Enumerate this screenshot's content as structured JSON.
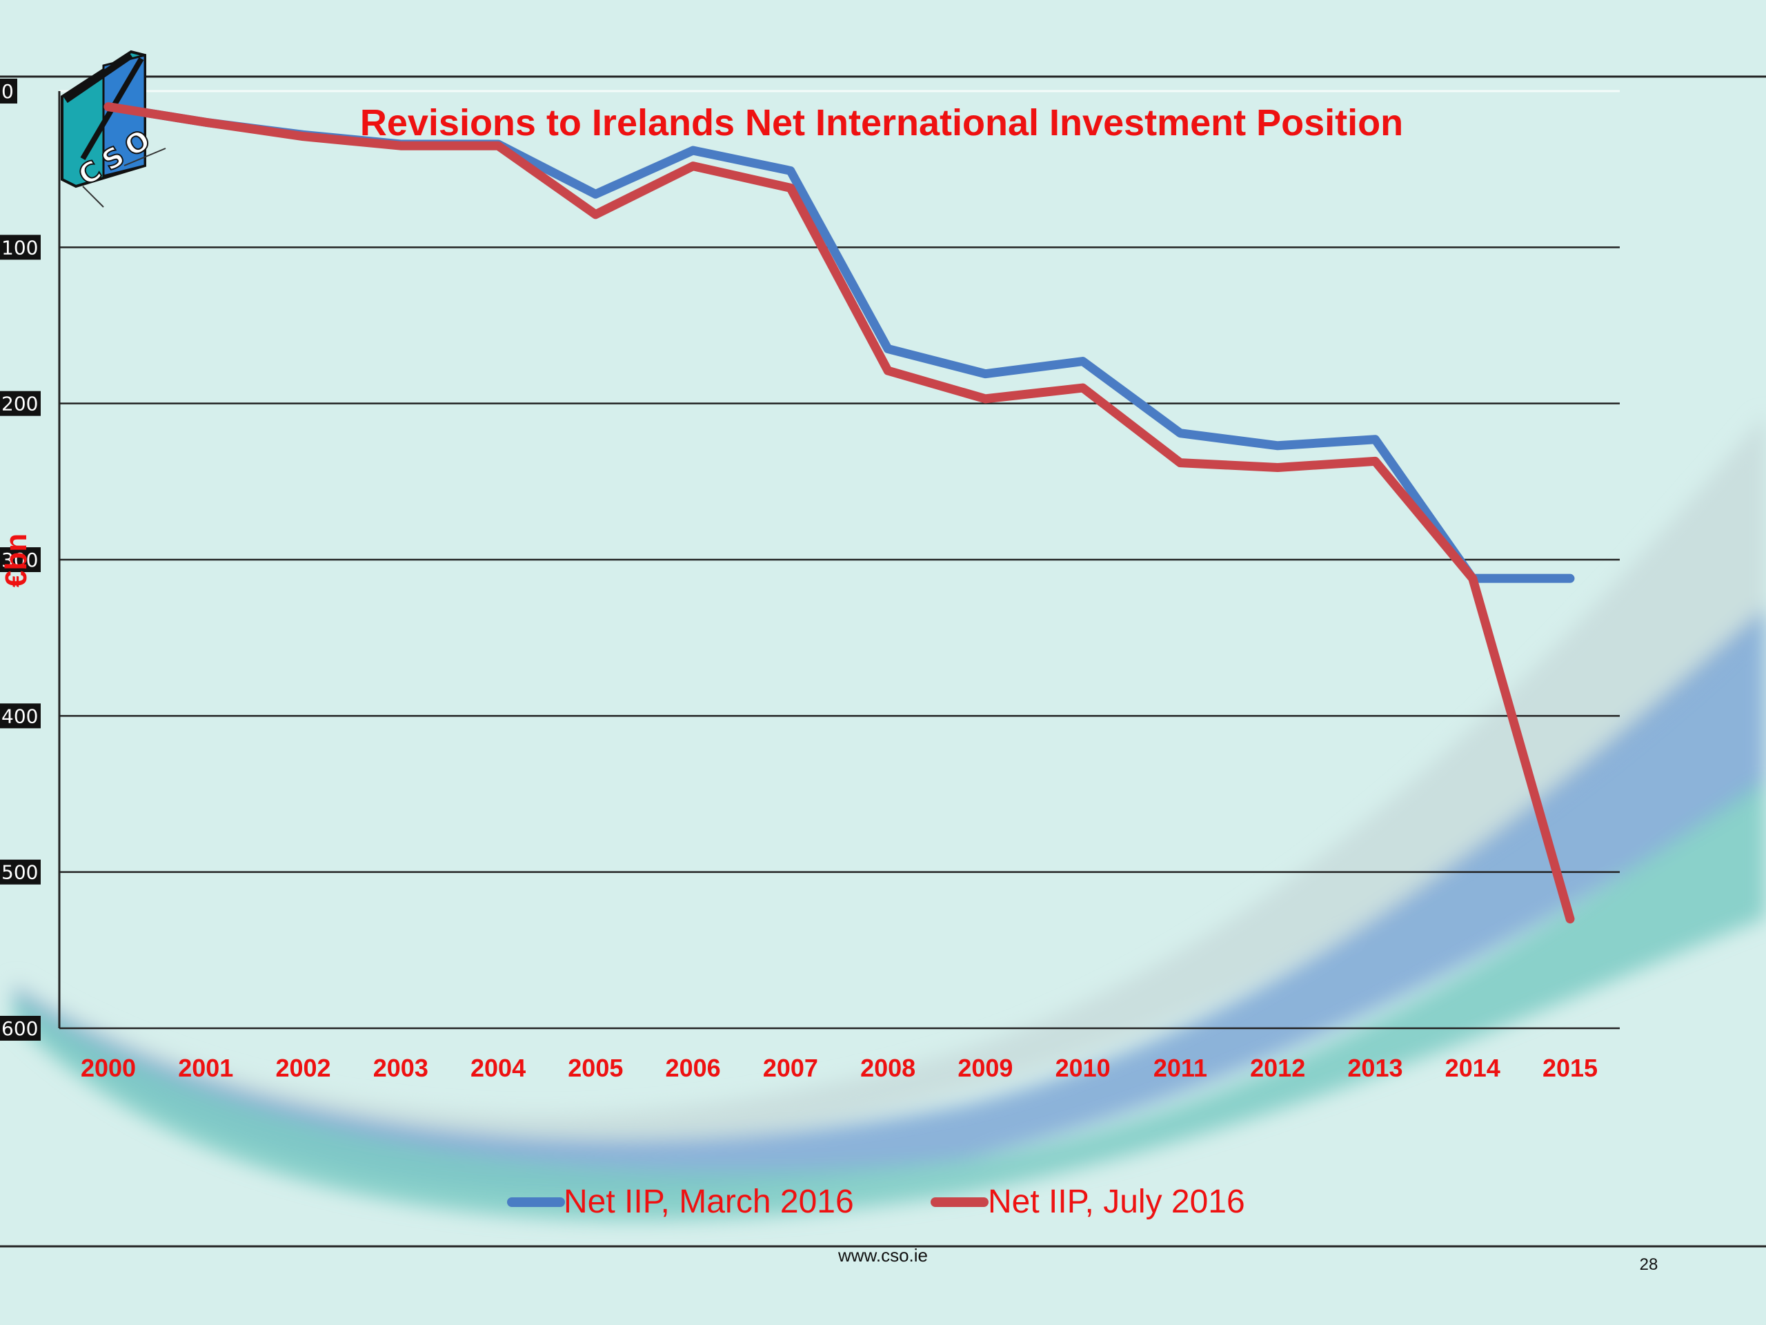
{
  "slide": {
    "footer_url": "www.cso.ie",
    "page_number": "28",
    "logo_text": "CSO"
  },
  "colors": {
    "background": "#d6efec",
    "series_march": "#4a7cc4",
    "series_july": "#c9454a",
    "text_red": "#ee1111"
  },
  "chart_data": {
    "type": "line",
    "title": "Revisions to Irelands Net International Investment Position",
    "ylabel": "€bn",
    "xlabel": "",
    "ylim": [
      -600,
      0
    ],
    "y_ticks": [
      0,
      -100,
      -200,
      -300,
      -400,
      -500,
      -600
    ],
    "y_tick_labels": [
      "0",
      "100",
      "200",
      "300",
      "400",
      "500",
      "600"
    ],
    "grid": true,
    "legend_position": "bottom",
    "categories": [
      "2000",
      "2001",
      "2002",
      "2003",
      "2004",
      "2005",
      "2006",
      "2007",
      "2008",
      "2009",
      "2010",
      "2011",
      "2012",
      "2013",
      "2014",
      "2015"
    ],
    "series": [
      {
        "name": "Net IIP, March 2016",
        "color": "#4a7cc4",
        "values": [
          -10,
          -20,
          -28,
          -34,
          -34,
          -66,
          -38,
          -51,
          -165,
          -181,
          -173,
          -219,
          -227,
          -223,
          -312,
          -312
        ]
      },
      {
        "name": "Net IIP, July 2016",
        "color": "#c9454a",
        "values": [
          -10,
          -20,
          -29,
          -35,
          -35,
          -79,
          -48,
          -62,
          -179,
          -197,
          -190,
          -238,
          -241,
          -237,
          -312,
          -530
        ]
      }
    ]
  }
}
